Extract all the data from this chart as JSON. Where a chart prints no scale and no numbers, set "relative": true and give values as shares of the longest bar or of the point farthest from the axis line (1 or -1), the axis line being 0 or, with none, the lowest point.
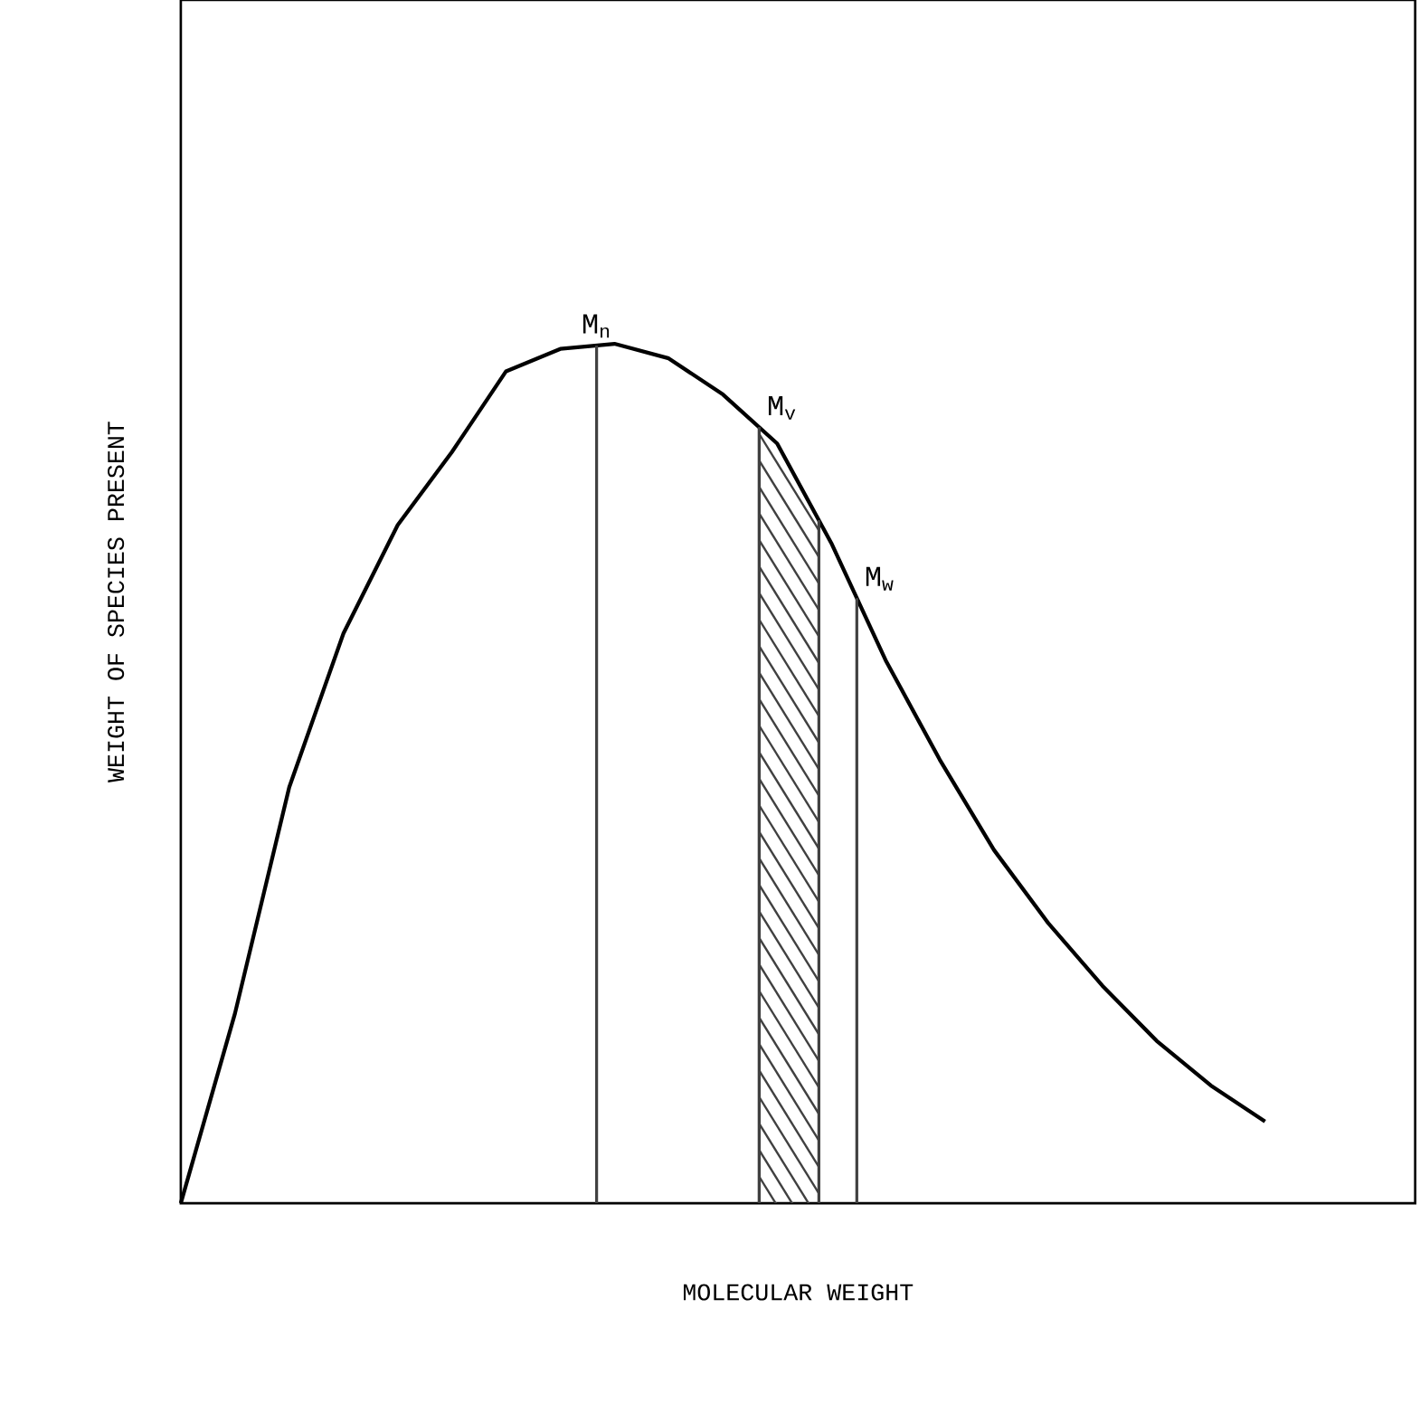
{
  "chart_data": {
    "type": "line",
    "relative": true,
    "xlabel": "MOLECULAR WEIGHT",
    "ylabel": "WEIGHT OF SPECIES PRESENT",
    "categories": [
      null,
      null,
      null,
      null,
      null,
      null,
      null,
      null,
      null,
      null,
      null,
      null,
      null,
      null,
      null,
      null,
      null,
      null,
      null,
      null,
      null
    ],
    "tick_labels": false,
    "marker": "none",
    "line_style": "solid",
    "series": [
      {
        "color": "#000000",
        "values": [
          0,
          0.221,
          0.484,
          0.663,
          0.789,
          0.874,
          0.968,
          0.994,
          1,
          0.983,
          0.941,
          0.884,
          0.768,
          0.632,
          0.516,
          0.411,
          0.326,
          0.253,
          0.189,
          0.137,
          0.095
        ]
      }
    ],
    "annotations": [
      "M$_{n}$",
      "M$_{v}$",
      "M$_{w}$"
    ]
  }
}
